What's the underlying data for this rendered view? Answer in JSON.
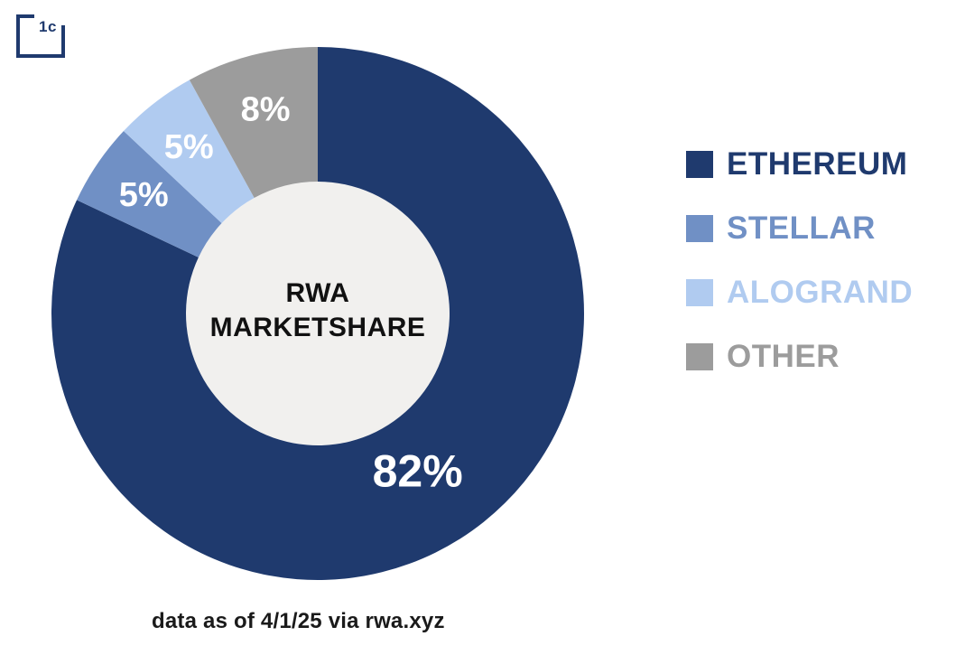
{
  "logo": {
    "text": "1c",
    "color": "#1f3a6e"
  },
  "chart_data": {
    "type": "pie",
    "donut": true,
    "title": "RWA MARKETSHARE",
    "center_label_lines": [
      "RWA",
      "MARKETSHARE"
    ],
    "categories": [
      "ETHEREUM",
      "STELLAR",
      "ALOGRAND",
      "OTHER"
    ],
    "values": [
      82,
      5,
      5,
      8
    ],
    "labels": [
      "82%",
      "5%",
      "5%",
      "8%"
    ],
    "colors": [
      "#1f3a6e",
      "#7090c5",
      "#b0cbf0",
      "#9c9c9c"
    ],
    "start_angle_deg": 0,
    "direction": "clockwise",
    "hole_color": "#f1f0ee",
    "label_color": "#ffffff",
    "legend_position": "right"
  },
  "caption": "data as of 4/1/25 via rwa.xyz"
}
